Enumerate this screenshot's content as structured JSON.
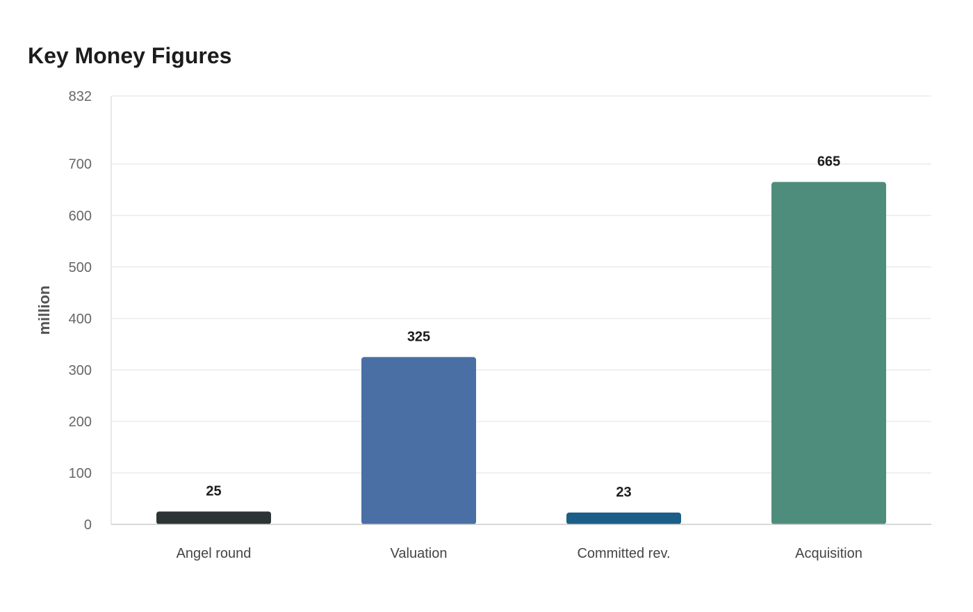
{
  "chart_data": {
    "type": "bar",
    "title": "Key Money Figures",
    "xlabel": "",
    "ylabel": "million",
    "categories": [
      "Angel round",
      "Valuation",
      "Committed rev.",
      "Acquisition"
    ],
    "values": [
      25,
      325,
      23,
      665
    ],
    "data_labels": [
      "25",
      "325",
      "23",
      "665"
    ],
    "colors": [
      "#2d3436",
      "#4a6fa5",
      "#1b5e87",
      "#4e8d7c"
    ],
    "ylim": [
      0,
      832
    ],
    "yticks": [
      0,
      100,
      200,
      300,
      400,
      500,
      600,
      700,
      832
    ],
    "grid": true,
    "legend": "none"
  }
}
